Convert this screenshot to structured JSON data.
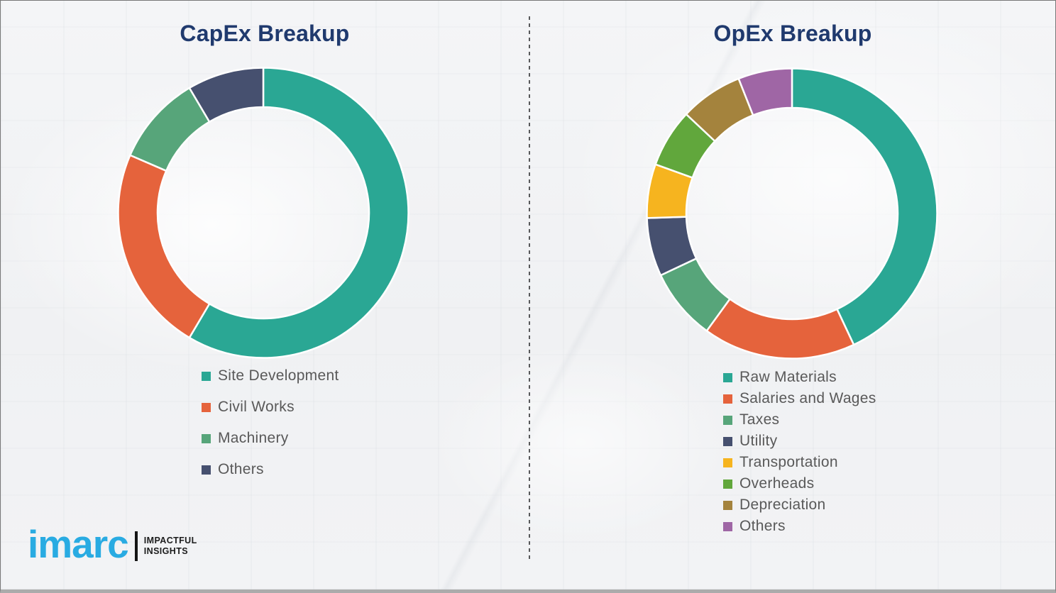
{
  "page": {
    "background_color": "#F2F3F5",
    "divider_color": "#58595B",
    "title_color": "#203A6E",
    "legend_text_color": "#595959"
  },
  "chart_data": [
    {
      "type": "donut",
      "title": "CapEx Breakup",
      "start_angle_deg": 0,
      "direction": "clockwise",
      "units": "percent_share",
      "legend_position": "below-left",
      "segments": [
        {
          "label": "Site Development",
          "value": 58.5,
          "color": "#2AA794"
        },
        {
          "label": "Civil Works",
          "value": 23,
          "color": "#E5633C"
        },
        {
          "label": "Machinery",
          "value": 10,
          "color": "#57A57A"
        },
        {
          "label": "Others",
          "value": 8.5,
          "color": "#46506F"
        }
      ]
    },
    {
      "type": "donut",
      "title": "OpEx Breakup",
      "start_angle_deg": 0,
      "direction": "clockwise",
      "units": "percent_share",
      "legend_position": "below-left",
      "segments": [
        {
          "label": "Raw Materials",
          "value": 43,
          "color": "#2AA794"
        },
        {
          "label": "Salaries and Wages",
          "value": 17,
          "color": "#E5633C"
        },
        {
          "label": "Taxes",
          "value": 8,
          "color": "#57A57A"
        },
        {
          "label": "Utility",
          "value": 6.5,
          "color": "#46506F"
        },
        {
          "label": "Transportation",
          "value": 6,
          "color": "#F6B41F"
        },
        {
          "label": "Overheads",
          "value": 6.5,
          "color": "#61A73C"
        },
        {
          "label": "Depreciation",
          "value": 7,
          "color": "#A4833D"
        },
        {
          "label": "Others",
          "value": 6,
          "color": "#9F66A5"
        }
      ]
    }
  ],
  "logo": {
    "wordmark": "imarc",
    "wordmark_color": "#29ABE2",
    "tagline_line1": "IMPACTFUL",
    "tagline_line2": "INSIGHTS"
  }
}
